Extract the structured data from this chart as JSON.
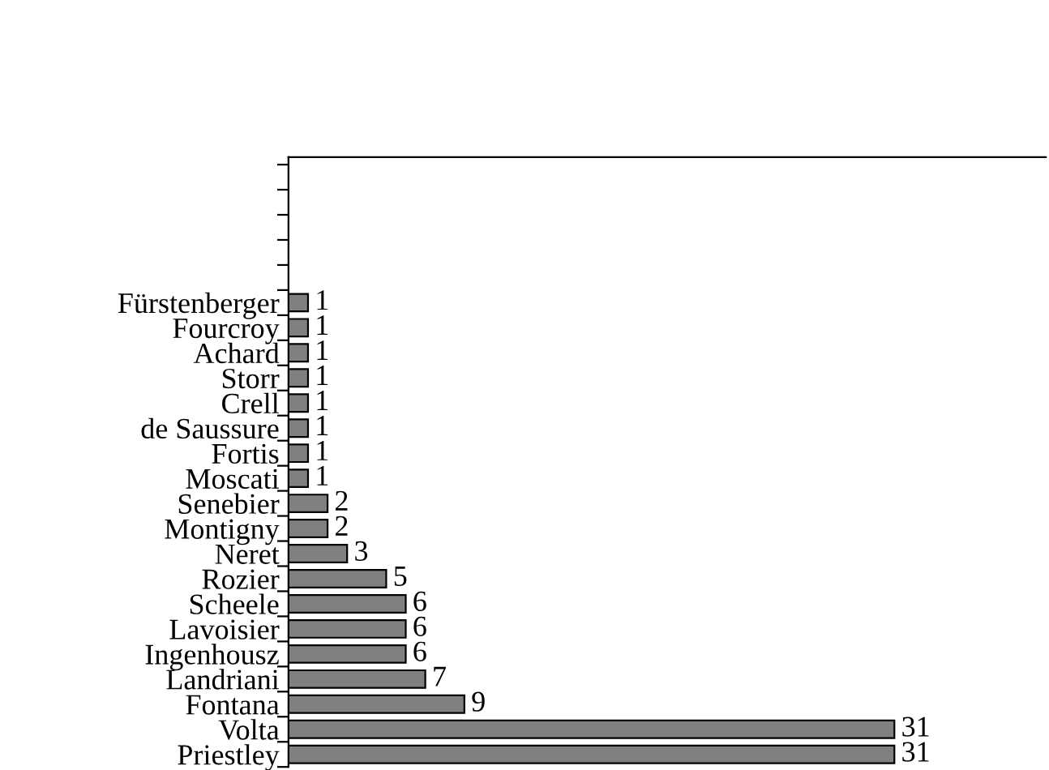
{
  "chart_data": {
    "type": "bar",
    "orientation": "horizontal",
    "categories": [
      "Fürstenberger",
      "Fourcroy",
      "Achard",
      "Storr",
      "Crell",
      "de Saussure",
      "Fortis",
      "Moscati",
      "Senebier",
      "Montigny",
      "Neret",
      "Rozier",
      "Scheele",
      "Lavoisier",
      "Ingenhousz",
      "Landriani",
      "Fontana",
      "Volta",
      "Priestley"
    ],
    "values": [
      1,
      1,
      1,
      1,
      1,
      1,
      1,
      1,
      2,
      2,
      3,
      5,
      6,
      6,
      6,
      7,
      9,
      31,
      31
    ],
    "color": "#808080",
    "data_labels": true,
    "grid": false,
    "legend": false
  }
}
